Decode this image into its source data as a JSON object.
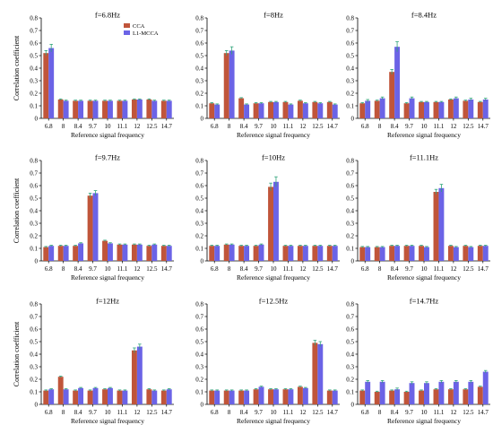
{
  "series_colors": [
    "#c0553a",
    "#6b63e6"
  ],
  "error_color": "#2fa37a",
  "chart_data": [
    {
      "type": "bar",
      "title": "f=6.8Hz",
      "xlabel": "Reference signal frequency",
      "ylabel": "Correlation coefficient",
      "categories": [
        "6.8",
        "8",
        "8.4",
        "9.7",
        "10",
        "11.1",
        "12",
        "12.5",
        "14.7"
      ],
      "ylim": [
        0,
        0.8
      ],
      "yticks": [
        "0",
        "0.1",
        "0.2",
        "0.3",
        "0.4",
        "0.5",
        "0.6",
        "0.7",
        "0.8"
      ],
      "grid": false,
      "legend": "top-center",
      "series": [
        {
          "name": "CCA",
          "values": [
            0.52,
            0.15,
            0.14,
            0.14,
            0.14,
            0.14,
            0.15,
            0.15,
            0.14
          ],
          "errors": [
            0.02,
            0.005,
            0.005,
            0.005,
            0.005,
            0.005,
            0.005,
            0.005,
            0.005
          ]
        },
        {
          "name": "L1-MCCA",
          "values": [
            0.56,
            0.14,
            0.14,
            0.14,
            0.14,
            0.14,
            0.15,
            0.14,
            0.14
          ],
          "errors": [
            0.03,
            0.005,
            0.005,
            0.005,
            0.005,
            0.005,
            0.005,
            0.005,
            0.005
          ]
        }
      ]
    },
    {
      "type": "bar",
      "title": "f=8Hz",
      "xlabel": "Reference signal frequency",
      "ylabel": "",
      "categories": [
        "6.8",
        "8",
        "8.4",
        "9.7",
        "10",
        "11.1",
        "12",
        "12.5",
        "14.7"
      ],
      "ylim": [
        0,
        0.8
      ],
      "yticks": [
        "0",
        "0.1",
        "0.2",
        "0.3",
        "0.4",
        "0.5",
        "0.6",
        "0.7",
        "0.8"
      ],
      "grid": false,
      "legend": "",
      "series": [
        {
          "values": [
            0.12,
            0.52,
            0.16,
            0.12,
            0.13,
            0.13,
            0.14,
            0.13,
            0.13
          ],
          "errors": [
            0.005,
            0.02,
            0.005,
            0.005,
            0.005,
            0.005,
            0.005,
            0.005,
            0.005
          ]
        },
        {
          "values": [
            0.11,
            0.54,
            0.11,
            0.12,
            0.13,
            0.11,
            0.12,
            0.12,
            0.11
          ],
          "errors": [
            0.005,
            0.03,
            0.005,
            0.005,
            0.005,
            0.005,
            0.005,
            0.005,
            0.005
          ]
        }
      ]
    },
    {
      "type": "bar",
      "title": "f=8.4Hz",
      "xlabel": "Reference signal frequency",
      "ylabel": "",
      "categories": [
        "6.8",
        "8",
        "8.4",
        "9.7",
        "10",
        "11.1",
        "12",
        "12.5",
        "14.7"
      ],
      "ylim": [
        0,
        0.8
      ],
      "yticks": [
        "0",
        "0.1",
        "0.2",
        "0.3",
        "0.4",
        "0.5",
        "0.6",
        "0.7",
        "0.8"
      ],
      "grid": false,
      "legend": "",
      "series": [
        {
          "values": [
            0.12,
            0.14,
            0.37,
            0.12,
            0.13,
            0.13,
            0.15,
            0.14,
            0.13
          ],
          "errors": [
            0.005,
            0.005,
            0.02,
            0.005,
            0.005,
            0.005,
            0.005,
            0.005,
            0.005
          ]
        },
        {
          "values": [
            0.14,
            0.16,
            0.57,
            0.16,
            0.13,
            0.13,
            0.16,
            0.15,
            0.15
          ],
          "errors": [
            0.01,
            0.01,
            0.04,
            0.01,
            0.005,
            0.005,
            0.01,
            0.01,
            0.01
          ]
        }
      ]
    },
    {
      "type": "bar",
      "title": "f=9.7Hz",
      "xlabel": "Reference signal frequency",
      "ylabel": "Correlation coefficient",
      "categories": [
        "6.8",
        "8",
        "8.4",
        "9.7",
        "10",
        "11.1",
        "12",
        "12.5",
        "14.7"
      ],
      "ylim": [
        0,
        0.8
      ],
      "yticks": [
        "0",
        "0.1",
        "0.2",
        "0.3",
        "0.4",
        "0.5",
        "0.6",
        "0.7",
        "0.8"
      ],
      "grid": false,
      "legend": "",
      "series": [
        {
          "values": [
            0.11,
            0.12,
            0.12,
            0.52,
            0.16,
            0.13,
            0.13,
            0.12,
            0.12
          ],
          "errors": [
            0.005,
            0.005,
            0.005,
            0.02,
            0.005,
            0.005,
            0.005,
            0.005,
            0.005
          ]
        },
        {
          "values": [
            0.12,
            0.12,
            0.14,
            0.54,
            0.14,
            0.13,
            0.13,
            0.13,
            0.12
          ],
          "errors": [
            0.005,
            0.005,
            0.005,
            0.02,
            0.005,
            0.005,
            0.005,
            0.005,
            0.005
          ]
        }
      ]
    },
    {
      "type": "bar",
      "title": "f=10Hz",
      "xlabel": "Reference signal frequency",
      "ylabel": "",
      "categories": [
        "6.8",
        "8",
        "8.4",
        "9.7",
        "10",
        "11.1",
        "12",
        "12.5",
        "14.7"
      ],
      "ylim": [
        0,
        0.8
      ],
      "yticks": [
        "0",
        "0.1",
        "0.2",
        "0.3",
        "0.4",
        "0.5",
        "0.6",
        "0.7",
        "0.8"
      ],
      "grid": false,
      "legend": "",
      "series": [
        {
          "values": [
            0.12,
            0.13,
            0.12,
            0.12,
            0.59,
            0.12,
            0.12,
            0.12,
            0.12
          ],
          "errors": [
            0.005,
            0.005,
            0.005,
            0.005,
            0.03,
            0.005,
            0.005,
            0.005,
            0.005
          ]
        },
        {
          "values": [
            0.12,
            0.13,
            0.12,
            0.13,
            0.63,
            0.12,
            0.12,
            0.12,
            0.12
          ],
          "errors": [
            0.005,
            0.005,
            0.005,
            0.005,
            0.04,
            0.005,
            0.005,
            0.005,
            0.005
          ]
        }
      ]
    },
    {
      "type": "bar",
      "title": "f=11.1Hz",
      "xlabel": "Reference signal frequency",
      "ylabel": "",
      "categories": [
        "6.8",
        "8",
        "8.4",
        "9.7",
        "10",
        "11.1",
        "12",
        "12.5",
        "14.7"
      ],
      "ylim": [
        0,
        0.8
      ],
      "yticks": [
        "0",
        "0.1",
        "0.2",
        "0.3",
        "0.4",
        "0.5",
        "0.6",
        "0.7",
        "0.8"
      ],
      "grid": false,
      "legend": "",
      "series": [
        {
          "values": [
            0.11,
            0.11,
            0.12,
            0.12,
            0.12,
            0.55,
            0.12,
            0.12,
            0.12
          ],
          "errors": [
            0.005,
            0.005,
            0.005,
            0.005,
            0.005,
            0.02,
            0.005,
            0.005,
            0.005
          ]
        },
        {
          "values": [
            0.11,
            0.11,
            0.12,
            0.12,
            0.11,
            0.58,
            0.11,
            0.11,
            0.12
          ],
          "errors": [
            0.005,
            0.005,
            0.005,
            0.005,
            0.005,
            0.03,
            0.005,
            0.005,
            0.005
          ]
        }
      ]
    },
    {
      "type": "bar",
      "title": "f=12Hz",
      "xlabel": "Reference signal frequency",
      "ylabel": "Correlation coefficient",
      "categories": [
        "6.8",
        "8",
        "8.4",
        "9.7",
        "10",
        "11.1",
        "12",
        "12.5",
        "14.7"
      ],
      "ylim": [
        0,
        0.8
      ],
      "yticks": [
        "0",
        "0.1",
        "0.2",
        "0.3",
        "0.4",
        "0.5",
        "0.6",
        "0.7",
        "0.8"
      ],
      "grid": false,
      "legend": "",
      "series": [
        {
          "values": [
            0.11,
            0.22,
            0.11,
            0.11,
            0.12,
            0.11,
            0.43,
            0.12,
            0.11
          ],
          "errors": [
            0.005,
            0.005,
            0.005,
            0.005,
            0.005,
            0.005,
            0.02,
            0.005,
            0.005
          ]
        },
        {
          "values": [
            0.12,
            0.12,
            0.13,
            0.13,
            0.13,
            0.11,
            0.46,
            0.11,
            0.12
          ],
          "errors": [
            0.005,
            0.005,
            0.005,
            0.005,
            0.005,
            0.005,
            0.02,
            0.005,
            0.005
          ]
        }
      ]
    },
    {
      "type": "bar",
      "title": "f=12.5Hz",
      "xlabel": "Reference signal frequency",
      "ylabel": "",
      "categories": [
        "6.8",
        "8",
        "8.4",
        "9.7",
        "10",
        "11.1",
        "12",
        "12.5",
        "14.7"
      ],
      "ylim": [
        0,
        0.8
      ],
      "yticks": [
        "0",
        "0.1",
        "0.2",
        "0.3",
        "0.4",
        "0.5",
        "0.6",
        "0.7",
        "0.8"
      ],
      "grid": false,
      "legend": "",
      "series": [
        {
          "values": [
            0.11,
            0.11,
            0.11,
            0.12,
            0.12,
            0.12,
            0.14,
            0.49,
            0.11
          ],
          "errors": [
            0.005,
            0.005,
            0.005,
            0.005,
            0.005,
            0.005,
            0.005,
            0.02,
            0.005
          ]
        },
        {
          "values": [
            0.11,
            0.11,
            0.11,
            0.14,
            0.12,
            0.12,
            0.13,
            0.48,
            0.11
          ],
          "errors": [
            0.005,
            0.005,
            0.005,
            0.005,
            0.005,
            0.005,
            0.005,
            0.02,
            0.005
          ]
        }
      ]
    },
    {
      "type": "bar",
      "title": "f=14.7Hz",
      "xlabel": "Reference signal frequency",
      "ylabel": "",
      "categories": [
        "6.8",
        "8",
        "8.4",
        "9.7",
        "10",
        "11.1",
        "12",
        "12.5",
        "14.7"
      ],
      "ylim": [
        0,
        0.8
      ],
      "yticks": [
        "0",
        "0.1",
        "0.2",
        "0.3",
        "0.4",
        "0.5",
        "0.6",
        "0.7",
        "0.8"
      ],
      "grid": false,
      "legend": "",
      "series": [
        {
          "values": [
            0.11,
            0.1,
            0.11,
            0.1,
            0.11,
            0.12,
            0.12,
            0.12,
            0.14
          ],
          "errors": [
            0.005,
            0.005,
            0.005,
            0.005,
            0.005,
            0.005,
            0.005,
            0.005,
            0.005
          ]
        },
        {
          "values": [
            0.18,
            0.18,
            0.12,
            0.17,
            0.17,
            0.18,
            0.18,
            0.18,
            0.26
          ],
          "errors": [
            0.01,
            0.01,
            0.01,
            0.01,
            0.01,
            0.01,
            0.01,
            0.01,
            0.01
          ]
        }
      ]
    }
  ]
}
